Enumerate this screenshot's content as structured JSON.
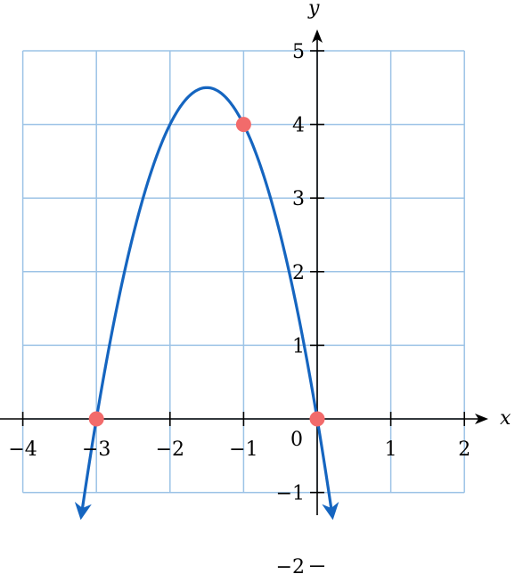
{
  "chart_data": {
    "type": "line",
    "title": "",
    "xlabel": "x",
    "ylabel": "y",
    "xlim": [
      -4,
      2
    ],
    "ylim": [
      -1,
      5
    ],
    "grid": true,
    "origin_label": "0",
    "x_ticks": [
      {
        "value": -4,
        "label": "−4"
      },
      {
        "value": -3,
        "label": "−3"
      },
      {
        "value": -2,
        "label": "−2"
      },
      {
        "value": -1,
        "label": "−1"
      },
      {
        "value": 1,
        "label": "1"
      },
      {
        "value": 2,
        "label": "2"
      }
    ],
    "y_ticks": [
      {
        "value": 5,
        "label": "5"
      },
      {
        "value": 4,
        "label": "4"
      },
      {
        "value": 3,
        "label": "3"
      },
      {
        "value": 2,
        "label": "2"
      },
      {
        "value": 1,
        "label": "1"
      },
      {
        "value": -1,
        "label": "−1"
      },
      {
        "value": -2,
        "label": "−2"
      }
    ],
    "series": [
      {
        "color": "#1565c0",
        "function": "y = -2x^2 - 6x",
        "x": [
          -3.2,
          -3,
          -2.75,
          -2.5,
          -2.25,
          -2,
          -1.75,
          -1.5,
          -1.25,
          -1,
          -0.75,
          -0.5,
          -0.25,
          0,
          0.2
        ],
        "y": [
          -1.28,
          0,
          1.375,
          2.5,
          3.375,
          4,
          4.375,
          4.5,
          4.375,
          4,
          3.375,
          2.5,
          1.375,
          0,
          -1.28
        ]
      }
    ],
    "highlight_points": [
      {
        "x": -3,
        "y": 0,
        "color": "#f26b6b"
      },
      {
        "x": -1,
        "y": 4,
        "color": "#f26b6b"
      },
      {
        "x": 0,
        "y": 0,
        "color": "#f26b6b"
      }
    ]
  }
}
